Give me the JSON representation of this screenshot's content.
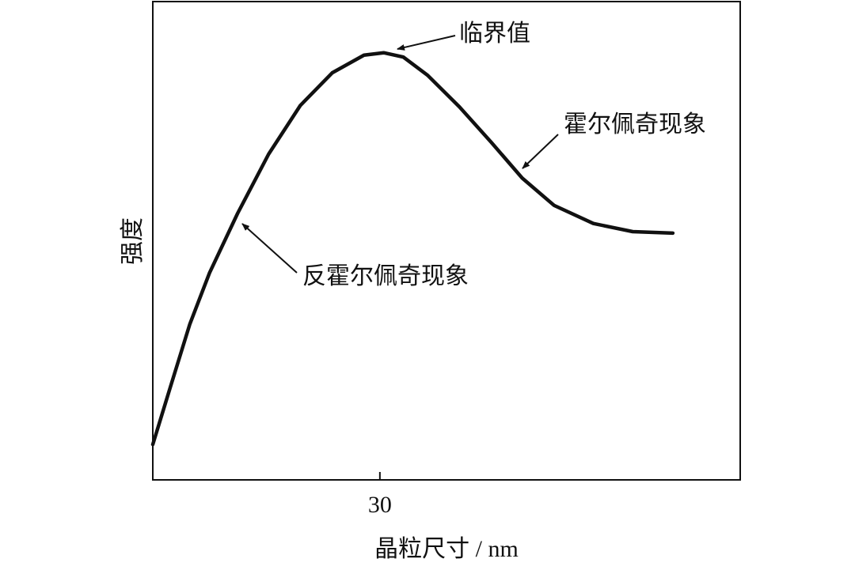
{
  "chart_data": {
    "type": "line",
    "x_label": "晶粒尺寸 / nm",
    "y_label": "强度",
    "xlim": [
      0,
      77.6
    ],
    "xticks": [
      30
    ],
    "ylim": [
      0,
      100
    ],
    "series": [
      {
        "color": "#111111",
        "x": [
          0,
          2.3,
          4.9,
          7.5,
          11.2,
          15.3,
          19.5,
          23.7,
          27.9,
          30.5,
          33.1,
          36.3,
          40.5,
          44.7,
          48.8,
          53.0,
          58.2,
          63.4,
          68.7
        ],
        "values": [
          7.4,
          19.3,
          32.6,
          43.3,
          55.7,
          68.1,
          78.3,
          85.1,
          88.8,
          89.3,
          88.4,
          84.6,
          78.0,
          70.6,
          63.1,
          57.4,
          53.6,
          51.9,
          51.6
        ]
      }
    ],
    "annotations": [
      "临界值",
      "霍尔佩奇现象",
      "反霍尔佩奇现象"
    ]
  }
}
